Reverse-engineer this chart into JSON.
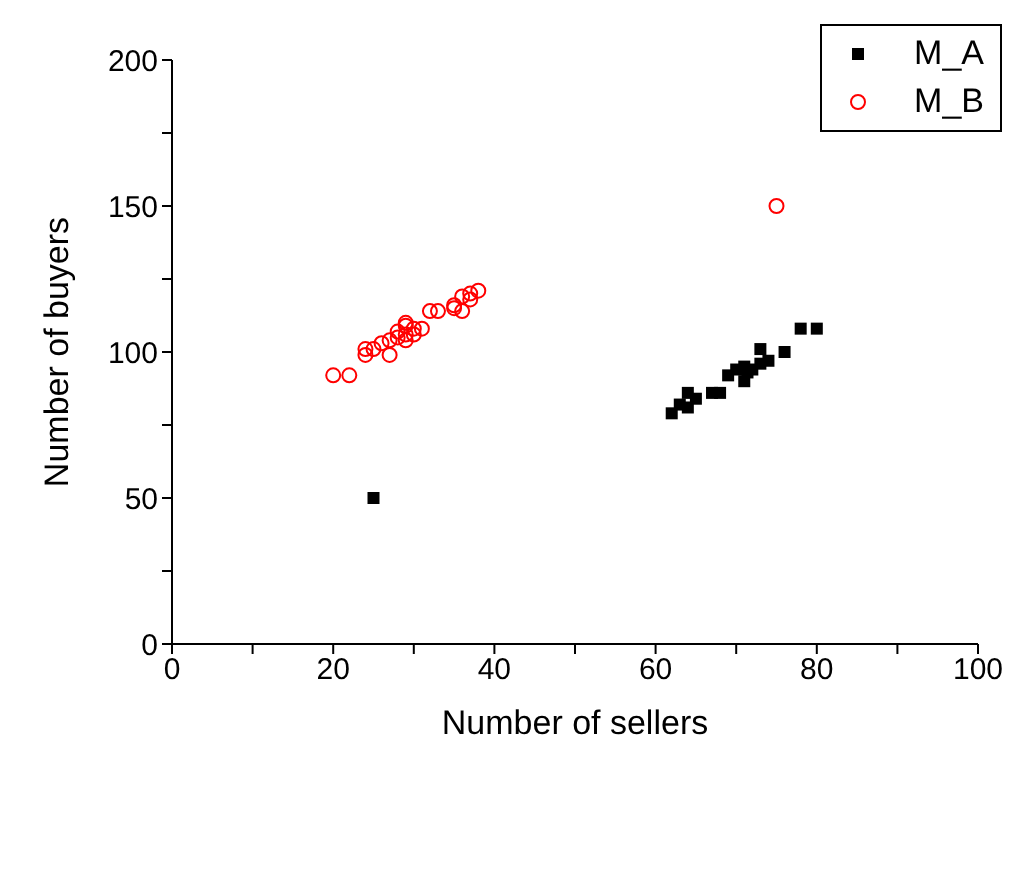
{
  "chart_data": {
    "type": "scatter",
    "xlabel": "Number of sellers",
    "ylabel": "Number of buyers",
    "xlim": [
      0,
      100
    ],
    "ylim": [
      0,
      200
    ],
    "xticks": [
      0,
      {
        "value": 10,
        "label": null
      },
      20,
      {
        "value": 30,
        "label": null
      },
      40,
      {
        "value": 50,
        "label": null
      },
      60,
      {
        "value": 70,
        "label": null
      },
      80,
      {
        "value": 90,
        "label": null
      },
      100
    ],
    "yticks": [
      0,
      {
        "value": 25,
        "label": null
      },
      50,
      {
        "value": 75,
        "label": null
      },
      100,
      {
        "value": 125,
        "label": null
      },
      150,
      {
        "value": 175,
        "label": null
      },
      200
    ],
    "grid": false,
    "legend": "top right",
    "series": [
      {
        "name": "M_A",
        "color": "#000000",
        "marker": "square",
        "x": [
          62,
          63,
          64,
          64,
          65,
          67,
          68,
          69,
          70,
          71,
          71,
          71.4,
          72,
          73,
          73,
          74,
          76,
          78,
          80,
          25
        ],
        "values": [
          79,
          82,
          81,
          86,
          84,
          86,
          86,
          92,
          94,
          95,
          90,
          93,
          94,
          101,
          96,
          97,
          100,
          108,
          108,
          50
        ]
      },
      {
        "name": "M_B",
        "color": "#ff0000",
        "marker": "circle",
        "x": [
          20,
          22,
          24,
          24,
          25,
          26,
          27,
          27,
          28,
          28,
          29,
          29,
          29,
          29,
          30,
          30,
          31,
          32,
          33,
          35,
          35,
          36,
          36,
          37,
          37,
          38,
          75
        ],
        "values": [
          92,
          92,
          99,
          101,
          101,
          103,
          104,
          99,
          107,
          105,
          110,
          109,
          106,
          104,
          108,
          106,
          108,
          114,
          114,
          116,
          115,
          119,
          114,
          118,
          120,
          121,
          150
        ]
      }
    ]
  }
}
